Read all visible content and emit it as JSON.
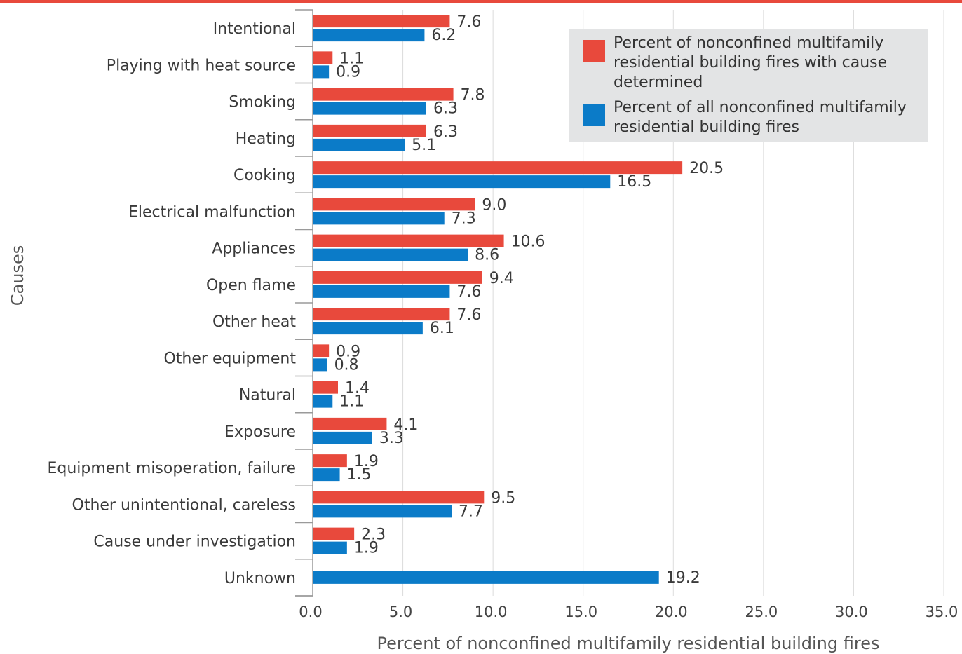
{
  "chart_data": {
    "type": "bar",
    "orientation": "horizontal",
    "categories": [
      "Intentional",
      "Playing with heat source",
      "Smoking",
      "Heating",
      "Cooking",
      "Electrical malfunction",
      "Appliances",
      "Open flame",
      "Other heat",
      "Other equipment",
      "Natural",
      "Exposure",
      "Equipment misoperation, failure",
      "Other unintentional, careless",
      "Cause under investigation",
      "Unknown"
    ],
    "series": [
      {
        "name": "Percent of nonconfined multifamily residential building fires with cause determined",
        "color": "#e8493c",
        "values": [
          7.6,
          1.1,
          7.8,
          6.3,
          20.5,
          9.0,
          10.6,
          9.4,
          7.6,
          0.9,
          1.4,
          4.1,
          1.9,
          9.5,
          2.3,
          null
        ],
        "labels": [
          "7.6",
          "1.1",
          "7.8",
          "6.3",
          "20.5",
          "9.0",
          "10.6",
          "9.4",
          "7.6",
          "0.9",
          "1.4",
          "4.1",
          "1.9",
          "9.5",
          "2.3",
          ""
        ]
      },
      {
        "name": "Percent of all nonconfined multifamily residential building fires",
        "color": "#0b7bc8",
        "values": [
          6.2,
          0.9,
          6.3,
          5.1,
          16.5,
          7.3,
          8.6,
          7.6,
          6.1,
          0.8,
          1.1,
          3.3,
          1.5,
          7.7,
          1.9,
          19.2
        ],
        "labels": [
          "6.2",
          "0.9",
          "6.3",
          "5.1",
          "16.5",
          "7.3",
          "8.6",
          "7.6",
          "6.1",
          "0.8",
          "1.1",
          "3.3",
          "1.5",
          "7.7",
          "1.9",
          "19.2"
        ]
      }
    ],
    "xlim": [
      0,
      35
    ],
    "xticks": [
      "0.0",
      "5.0",
      "10.0",
      "15.0",
      "20.0",
      "25.0",
      "30.0",
      "35.0"
    ],
    "xlabel": "Percent of nonconfined multifamily residential building fires",
    "ylabel": "Causes",
    "grid": "vertical",
    "legend_position": "top-right"
  },
  "colors": {
    "accent_rule": "#e8493c",
    "grid": "#dcdcdc",
    "axis": "#9a9a9a",
    "legend_bg": "#e3e4e5"
  }
}
